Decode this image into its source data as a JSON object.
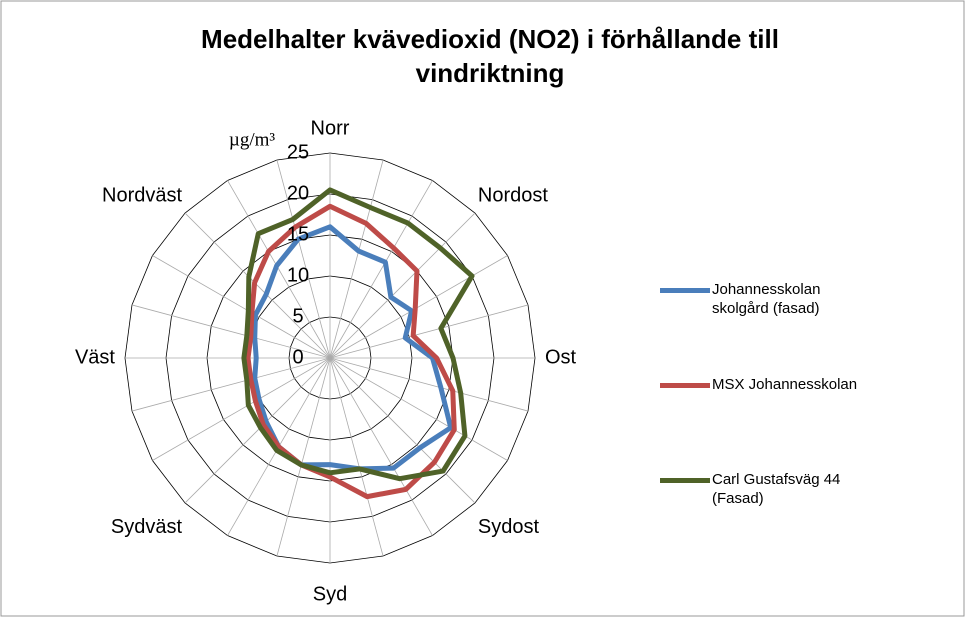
{
  "chart_data": {
    "type": "radar",
    "title": "Medelhalter kvävedioxid (NO2) i förhållande till vindriktning",
    "axis_label": "µg/m³",
    "categories": [
      "Norr",
      null,
      null,
      "Nordost",
      null,
      null,
      "Ost",
      null,
      null,
      "Sydost",
      null,
      null,
      "Syd",
      null,
      null,
      "Sydväst",
      null,
      null,
      "Väst",
      null,
      null,
      "Nordväst",
      null,
      null
    ],
    "ylim": [
      0,
      25
    ],
    "yticks": [
      0,
      5,
      10,
      15,
      20,
      25
    ],
    "grid": true,
    "legend": "right",
    "series": [
      {
        "name": "Johannesskolan skolgård (fasad)",
        "color": "#4a7ebb",
        "values": [
          16,
          13.5,
          13.5,
          10.5,
          11.5,
          9.5,
          12.5,
          14,
          17,
          15.5,
          15.5,
          14,
          13,
          13.5,
          12.5,
          11,
          10,
          9.5,
          9,
          9.5,
          10.5,
          11,
          13,
          15
        ]
      },
      {
        "name": "MSX Johannesskolan",
        "color": "#be4b48",
        "values": [
          18.5,
          17,
          15.5,
          15,
          12,
          10.5,
          13,
          15.5,
          17.5,
          18,
          18.5,
          17.5,
          14.5,
          13.5,
          12.5,
          11.5,
          10.5,
          10,
          10,
          10,
          11,
          13,
          15,
          16.5
        ]
      },
      {
        "name": "Carl Gustafsväg 44 (Fasad)",
        "color": "#4f6228",
        "values": [
          20.5,
          19,
          19,
          19,
          20,
          14,
          15,
          16.5,
          19,
          19.5,
          17,
          14,
          14,
          13.5,
          13,
          12,
          11.5,
          10.5,
          10.5,
          10.5,
          11.5,
          14,
          17.5,
          17.5
        ]
      }
    ]
  }
}
